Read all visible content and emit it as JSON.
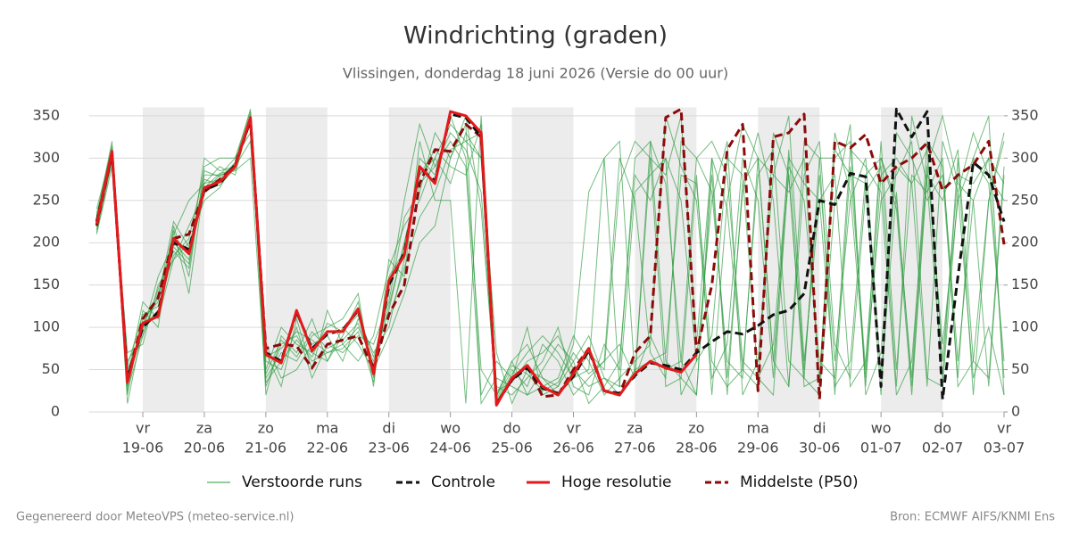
{
  "chart_data": {
    "type": "line",
    "title": "Windrichting (graden)",
    "subtitle": "Vlissingen, donderdag 18 juni 2026 (Versie do 00 uur)",
    "x": [
      0.25,
      0.5,
      0.75,
      1,
      1.25,
      1.5,
      1.75,
      2,
      2.25,
      2.5,
      2.75,
      3,
      3.25,
      3.5,
      3.75,
      4,
      4.25,
      4.5,
      4.75,
      5,
      5.25,
      5.5,
      5.75,
      6,
      6.25,
      6.5,
      6.75,
      7,
      7.25,
      7.5,
      7.75,
      8,
      8.25,
      8.5,
      8.75,
      9,
      9.25,
      9.5,
      9.75,
      10,
      10.25,
      10.5,
      10.75,
      11,
      11.25,
      11.5,
      11.75,
      12,
      12.25,
      12.5,
      12.75,
      13,
      13.25,
      13.5,
      13.75,
      14,
      14.25,
      14.5,
      14.75,
      15
    ],
    "xlim": [
      0.125,
      15
    ],
    "xticks": [
      {
        "value": 1,
        "label": "vr"
      },
      {
        "value": 2,
        "label": "za"
      },
      {
        "value": 3,
        "label": "zo"
      },
      {
        "value": 4,
        "label": "ma"
      },
      {
        "value": 5,
        "label": "di"
      },
      {
        "value": 6,
        "label": "wo"
      },
      {
        "value": 7,
        "label": "do"
      },
      {
        "value": 8,
        "label": "vr"
      },
      {
        "value": 9,
        "label": "za"
      },
      {
        "value": 10,
        "label": "zo"
      },
      {
        "value": 11,
        "label": "ma"
      },
      {
        "value": 12,
        "label": "di"
      },
      {
        "value": 13,
        "label": "wo"
      },
      {
        "value": 14,
        "label": "do"
      },
      {
        "value": 15,
        "label": "vr"
      }
    ],
    "xtick_dates": [
      "19-06",
      "20-06",
      "21-06",
      "22-06",
      "23-06",
      "24-06",
      "25-06",
      "26-06",
      "27-06",
      "28-06",
      "29-06",
      "30-06",
      "01-07",
      "02-07",
      "03-07"
    ],
    "ylim": [
      0,
      360
    ],
    "yticks": [
      0,
      50,
      100,
      150,
      200,
      250,
      300,
      350
    ],
    "y2lim": [
      0,
      360
    ],
    "y2ticks": [
      0,
      50,
      100,
      150,
      200,
      250,
      300,
      350
    ],
    "grid": true,
    "legend": "bottom",
    "ensemble": {
      "name": "Verstoorde runs",
      "color": "#2b9a3c",
      "members": [
        [
          215,
          300,
          60,
          90,
          140,
          190,
          170,
          280,
          280,
          285,
          300,
          30,
          80,
          90,
          60,
          70,
          80,
          100,
          60,
          120,
          200,
          280,
          300,
          340,
          320,
          300,
          20,
          60,
          80,
          40,
          30,
          60,
          90,
          40,
          30,
          260,
          280,
          300,
          250,
          60,
          90,
          300,
          280,
          40,
          80,
          300,
          270,
          250,
          30,
          60,
          280,
          300,
          250,
          40,
          320,
          290,
          60,
          250,
          300,
          270
        ],
        [
          230,
          320,
          20,
          120,
          100,
          220,
          160,
          290,
          300,
          300,
          355,
          40,
          70,
          60,
          90,
          100,
          110,
          140,
          30,
          180,
          160,
          320,
          250,
          250,
          10,
          350,
          30,
          20,
          40,
          60,
          100,
          30,
          20,
          80,
          50,
          300,
          320,
          60,
          40,
          280,
          20,
          250,
          340,
          300,
          60,
          30,
          280,
          320,
          80,
          40,
          260,
          290,
          30,
          350,
          270,
          40,
          300,
          20,
          250,
          330
        ],
        [
          210,
          290,
          70,
          80,
          150,
          180,
          200,
          250,
          265,
          295,
          340,
          60,
          50,
          100,
          40,
          80,
          70,
          90,
          80,
          130,
          230,
          260,
          330,
          300,
          350,
          240,
          15,
          50,
          30,
          80,
          60,
          20,
          40,
          60,
          300,
          250,
          70,
          40,
          320,
          300,
          260,
          60,
          40,
          300,
          280,
          350,
          60,
          250,
          280,
          30,
          60,
          300,
          240,
          20,
          280,
          250,
          310,
          60,
          40,
          290
        ],
        [
          240,
          310,
          10,
          100,
          120,
          210,
          250,
          270,
          290,
          280,
          350,
          20,
          90,
          70,
          110,
          60,
          100,
          80,
          50,
          90,
          140,
          200,
          220,
          300,
          340,
          20,
          60,
          40,
          100,
          20,
          30,
          80,
          260,
          300,
          30,
          40,
          320,
          270,
          60,
          20,
          300,
          240,
          50,
          30,
          330,
          280,
          40,
          20,
          250,
          340,
          20,
          70,
          290,
          270,
          30,
          320,
          260,
          40,
          100,
          20
        ],
        [
          225,
          305,
          50,
          95,
          160,
          200,
          180,
          300,
          285,
          290,
          320,
          80,
          40,
          50,
          80,
          90,
          60,
          110,
          70,
          100,
          180,
          300,
          280,
          350,
          300,
          50,
          20,
          60,
          20,
          50,
          80,
          60,
          10,
          30,
          60,
          280,
          250,
          300,
          20,
          60,
          250,
          320,
          20,
          60,
          280,
          260,
          300,
          30,
          310,
          280,
          270,
          20,
          330,
          300,
          250,
          280,
          40,
          300,
          270,
          60
        ],
        [
          218,
          302,
          30,
          110,
          130,
          215,
          140,
          270,
          275,
          295,
          358,
          50,
          100,
          80,
          70,
          60,
          90,
          130,
          40,
          140,
          250,
          340,
          290,
          320,
          290,
          10,
          40,
          30,
          20,
          30,
          40,
          90,
          60,
          20,
          40,
          60,
          80,
          350,
          290,
          250,
          40,
          80,
          300,
          250,
          40,
          310,
          50,
          280,
          60,
          250,
          300,
          40,
          260,
          30,
          290,
          350,
          270,
          250,
          30,
          280
        ],
        [
          235,
          298,
          40,
          130,
          110,
          180,
          220,
          260,
          280,
          300,
          330,
          70,
          30,
          110,
          50,
          120,
          80,
          60,
          90,
          170,
          220,
          250,
          300,
          270,
          330,
          300,
          70,
          10,
          50,
          40,
          20,
          40,
          70,
          50,
          270,
          320,
          300,
          30,
          40,
          20,
          280,
          40,
          260,
          330,
          250,
          30,
          320,
          300,
          20,
          290,
          50,
          250,
          280,
          320,
          40,
          30,
          260,
          330,
          280,
          250
        ],
        [
          228,
          312,
          25,
          90,
          145,
          195,
          175,
          275,
          268,
          288,
          345,
          45,
          85,
          65,
          95,
          75,
          85,
          105,
          55,
          110,
          170,
          230,
          260,
          310,
          320,
          330,
          25,
          35,
          60,
          70,
          90,
          50,
          30,
          40,
          20,
          50,
          60,
          70,
          280,
          270,
          60,
          30,
          50,
          280,
          310,
          60,
          40,
          300,
          300,
          320,
          30,
          280,
          300,
          270,
          310,
          60,
          280,
          270,
          300,
          40
        ],
        [
          212,
          296,
          55,
          115,
          125,
          185,
          205,
          285,
          278,
          292,
          352,
          35,
          60,
          85,
          65,
          105,
          95,
          115,
          65,
          125,
          200,
          270,
          290,
          330,
          310,
          260,
          12,
          45,
          70,
          90,
          70,
          40,
          50,
          300,
          320,
          40,
          90,
          50,
          60,
          300,
          320,
          280,
          60,
          40,
          20,
          290,
          250,
          60,
          40,
          310,
          290,
          260,
          20,
          60,
          290,
          80,
          250,
          300,
          350,
          20
        ],
        [
          232,
          315,
          30,
          105,
          135,
          225,
          195,
          265,
          282,
          286,
          348,
          65,
          75,
          95,
          85,
          70,
          75,
          95,
          35,
          160,
          190,
          280,
          310,
          290,
          280,
          340,
          18,
          55,
          45,
          25,
          35,
          70,
          45,
          60,
          80,
          40,
          300,
          280,
          350,
          80,
          300,
          20,
          270,
          300,
          60,
          280,
          30,
          40,
          330,
          260,
          40,
          320,
          50,
          280,
          260,
          300,
          30,
          60,
          250,
          320
        ]
      ]
    },
    "series": [
      {
        "name": "Middelste (P50)",
        "color": "#8b0a0a",
        "dash": true,
        "values": [
          220,
          305,
          38,
          110,
          135,
          205,
          210,
          260,
          275,
          290,
          345,
          75,
          80,
          78,
          52,
          80,
          85,
          90,
          50,
          115,
          150,
          270,
          310,
          308,
          340,
          325,
          10,
          38,
          55,
          18,
          20,
          50,
          75,
          25,
          20,
          70,
          90,
          348,
          358,
          70,
          150,
          310,
          340,
          25,
          325,
          330,
          352,
          15,
          320,
          312,
          328,
          270,
          290,
          300,
          318,
          262,
          280,
          292,
          320,
          198
        ]
      },
      {
        "name": "Controle",
        "color": "#111111",
        "dash": true,
        "values": [
          225,
          305,
          40,
          100,
          118,
          200,
          192,
          262,
          270,
          292,
          345,
          70,
          60,
          118,
          75,
          92,
          97,
          120,
          48,
          150,
          188,
          288,
          273,
          352,
          348,
          325,
          10,
          38,
          52,
          28,
          22,
          42,
          73,
          25,
          22,
          43,
          58,
          55,
          50,
          70,
          83,
          95,
          92,
          102,
          115,
          120,
          140,
          250,
          245,
          282,
          278,
          30,
          358,
          325,
          355,
          15,
          160,
          295,
          280,
          225
        ]
      },
      {
        "name": "Hoge resolutie",
        "color": "#e3191b",
        "dash": false,
        "values": [
          222,
          308,
          35,
          105,
          113,
          205,
          187,
          265,
          272,
          290,
          348,
          68,
          58,
          120,
          72,
          95,
          95,
          122,
          45,
          155,
          185,
          290,
          270,
          355,
          350,
          330,
          8,
          40,
          55,
          30,
          20,
          45,
          75,
          25,
          20,
          45,
          60,
          52,
          47,
          68,
          null,
          null,
          null,
          null,
          null,
          null,
          null,
          null,
          null,
          null,
          null,
          null,
          null,
          null,
          null,
          null,
          null,
          null,
          null,
          null
        ]
      }
    ]
  },
  "footer": {
    "left": "Gegenereerd door MeteoVPS (meteo-service.nl)",
    "right": "Bron: ECMWF AIFS/KNMI Ens"
  }
}
